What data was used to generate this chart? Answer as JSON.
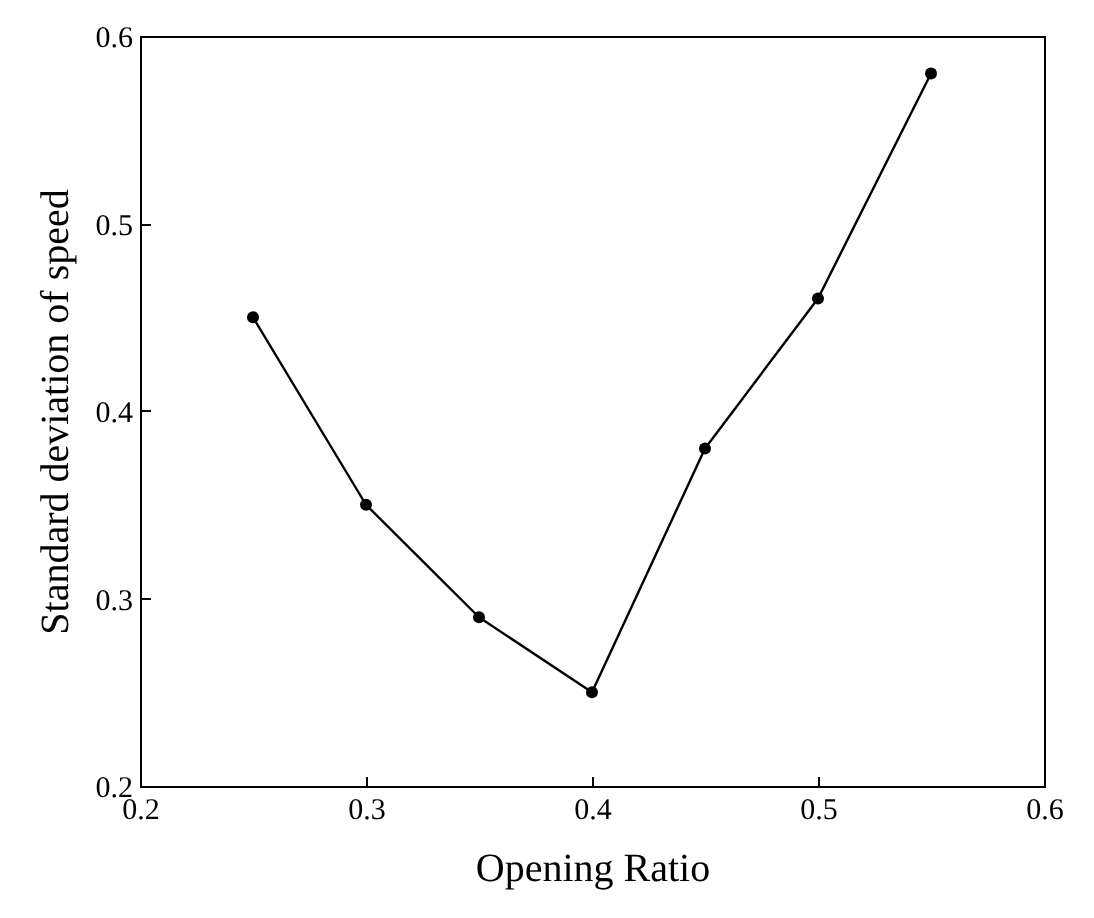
{
  "chart_data": {
    "type": "line",
    "xlabel": "Opening Ratio",
    "ylabel": "Standard deviation of speed",
    "x": [
      0.25,
      0.3,
      0.35,
      0.4,
      0.45,
      0.5,
      0.55
    ],
    "series": [
      {
        "color": "#000000",
        "values": [
          0.45,
          0.35,
          0.29,
          0.25,
          0.38,
          0.46,
          0.58
        ]
      }
    ],
    "xlim": [
      0.2,
      0.6
    ],
    "xticks": [
      0.2,
      0.3,
      0.4,
      0.5,
      0.6
    ],
    "ylim": [
      0.2,
      0.6
    ],
    "yticks": [
      0.2,
      0.3,
      0.4,
      0.5,
      0.6
    ],
    "marker": "circle",
    "line_style": "solid"
  }
}
